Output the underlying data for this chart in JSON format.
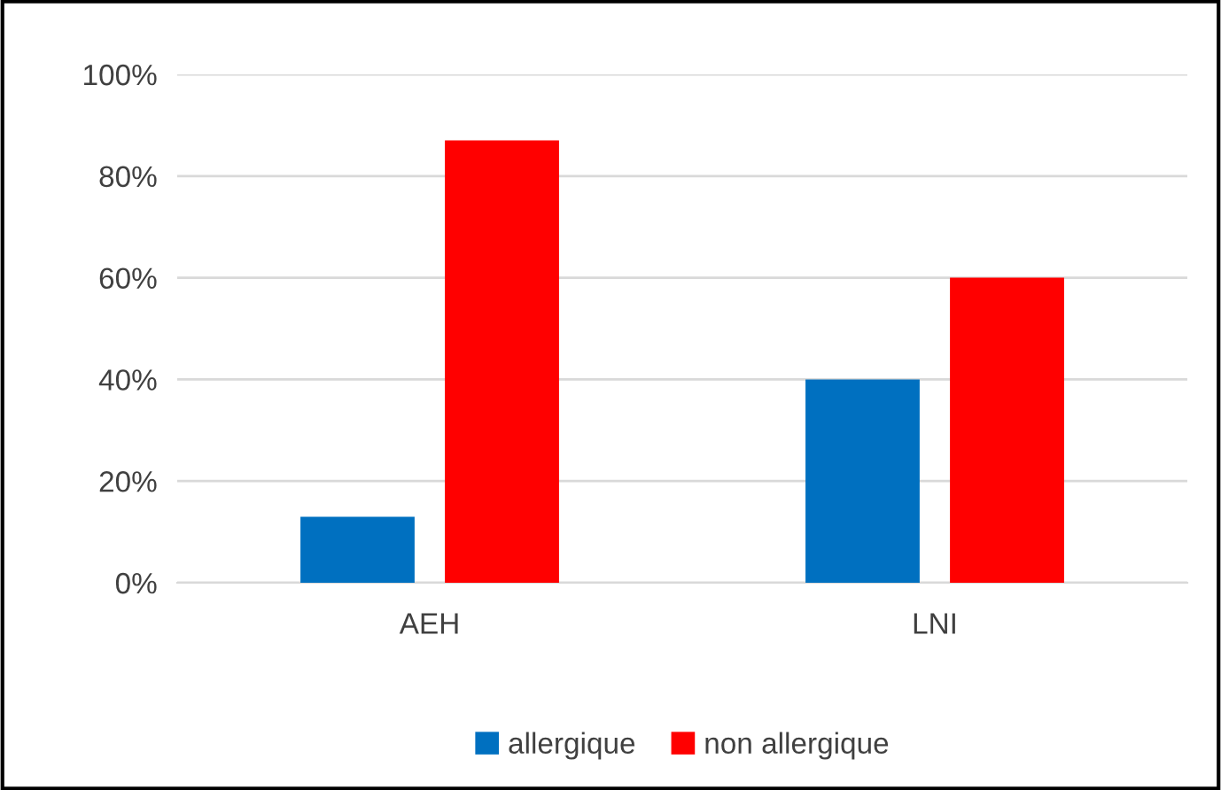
{
  "chart_data": {
    "type": "bar",
    "categories": [
      "AEH",
      "LNI"
    ],
    "series": [
      {
        "name": "allergique",
        "color": "#0070c0",
        "values": [
          13,
          40
        ]
      },
      {
        "name": "non allergique",
        "color": "#ff0000",
        "values": [
          87,
          60
        ]
      }
    ],
    "ylim": [
      0,
      100
    ],
    "yticks": [
      {
        "value": 0,
        "label": "0%"
      },
      {
        "value": 20,
        "label": "20%"
      },
      {
        "value": 40,
        "label": "40%"
      },
      {
        "value": 60,
        "label": "60%"
      },
      {
        "value": 80,
        "label": "80%"
      },
      {
        "value": 100,
        "label": "100%"
      }
    ],
    "grid": "y",
    "legend": "bottom"
  }
}
